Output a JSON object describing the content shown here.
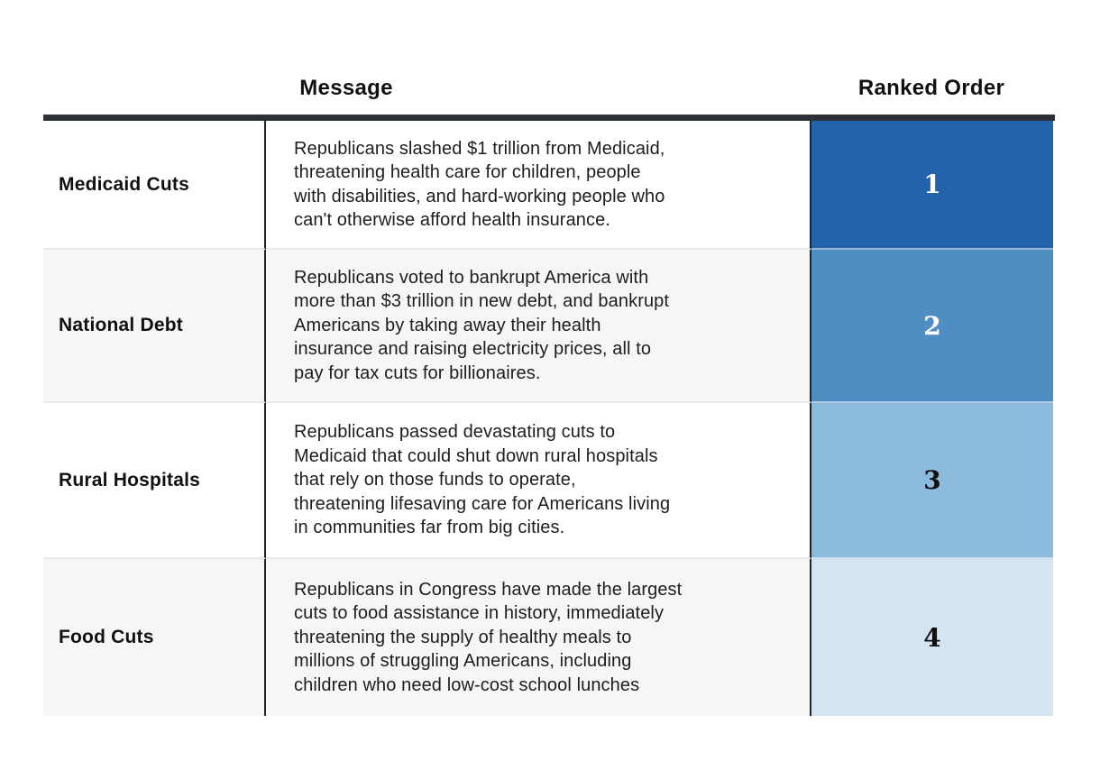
{
  "headers": {
    "message": "Message",
    "ranked_order": "Ranked Order"
  },
  "chart_data": {
    "type": "table",
    "columns": [
      "",
      "Message",
      "Ranked Order"
    ],
    "rows": [
      [
        "Medicaid Cuts",
        "Republicans slashed $1 trillion from Medicaid,\nthreatening health care for children, people\nwith disabilities, and hard-working people who\ncan't otherwise afford health insurance.",
        "1"
      ],
      [
        "National Debt",
        "Republicans voted to bankrupt America with\nmore than $3 trillion in new debt, and bankrupt\nAmericans by taking away their health\ninsurance and raising electricity prices, all to\npay for tax cuts for billionaires.",
        "2"
      ],
      [
        "Rural Hospitals",
        "Republicans passed devastating cuts to\nMedicaid that could shut down rural hospitals\nthat rely on those funds to operate,\nthreatening lifesaving care for Americans living\nin communities far from big cities.",
        "3"
      ],
      [
        "Food Cuts",
        "Republicans in Congress have made the largest\ncuts to food assistance in history, immediately\nthreatening the supply of healthy meals to\nmillions of struggling Americans, including\nchildren who need low-cost school lunches",
        "4"
      ]
    ],
    "rank_colors": [
      "#2263ac",
      "#4f8ec3",
      "#8cbadd",
      "#d4e4f0"
    ],
    "rank_number_colors": [
      "#ffffff",
      "#ffffff",
      "#101010",
      "#101010"
    ],
    "layout_hints": {
      "stripe_color": "#f6f6f6",
      "header_rule_color": "#2d3036",
      "column_divider_color": "#232323",
      "row_divider_color": "#e9e9e9"
    }
  }
}
